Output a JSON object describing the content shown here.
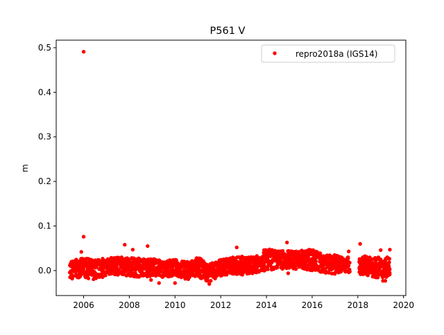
{
  "chart_data": {
    "type": "scatter",
    "title": "P561 V",
    "xlabel": "",
    "ylabel": "m",
    "xlim": [
      2004.8,
      2020.1
    ],
    "ylim": [
      -0.056,
      0.517
    ],
    "xticks": [
      2006,
      2008,
      2010,
      2012,
      2014,
      2016,
      2018,
      2020
    ],
    "xtick_labels": [
      "2006",
      "2008",
      "2010",
      "2012",
      "2014",
      "2016",
      "2018",
      "2020"
    ],
    "yticks": [
      0.0,
      0.1,
      0.2,
      0.3,
      0.4,
      0.5
    ],
    "ytick_labels": [
      "0.0",
      "0.1",
      "0.2",
      "0.3",
      "0.4",
      "0.5"
    ],
    "grid": false,
    "legend": {
      "placement": "top-right",
      "entries": [
        "repro2018a (IGS14)"
      ]
    },
    "series": [
      {
        "name": "repro2018a (IGS14)",
        "color": "#ff0000",
        "marker": "dot",
        "envelope": [
          {
            "x": 2005.4,
            "lo": -0.015,
            "hi": 0.022
          },
          {
            "x": 2006.0,
            "lo": -0.016,
            "hi": 0.028
          },
          {
            "x": 2006.5,
            "lo": -0.02,
            "hi": 0.025
          },
          {
            "x": 2007.0,
            "lo": -0.012,
            "hi": 0.028
          },
          {
            "x": 2007.5,
            "lo": -0.01,
            "hi": 0.03
          },
          {
            "x": 2008.0,
            "lo": -0.012,
            "hi": 0.03
          },
          {
            "x": 2008.5,
            "lo": -0.015,
            "hi": 0.028
          },
          {
            "x": 2009.0,
            "lo": -0.012,
            "hi": 0.027
          },
          {
            "x": 2009.5,
            "lo": -0.015,
            "hi": 0.022
          },
          {
            "x": 2010.0,
            "lo": -0.012,
            "hi": 0.025
          },
          {
            "x": 2010.5,
            "lo": -0.02,
            "hi": 0.02
          },
          {
            "x": 2011.0,
            "lo": -0.015,
            "hi": 0.03
          },
          {
            "x": 2011.5,
            "lo": -0.025,
            "hi": 0.015
          },
          {
            "x": 2012.0,
            "lo": -0.012,
            "hi": 0.025
          },
          {
            "x": 2012.5,
            "lo": -0.008,
            "hi": 0.03
          },
          {
            "x": 2013.0,
            "lo": -0.01,
            "hi": 0.032
          },
          {
            "x": 2013.5,
            "lo": -0.005,
            "hi": 0.03
          },
          {
            "x": 2014.0,
            "lo": 0.0,
            "hi": 0.05
          },
          {
            "x": 2014.5,
            "lo": 0.002,
            "hi": 0.045
          },
          {
            "x": 2015.0,
            "lo": 0.005,
            "hi": 0.045
          },
          {
            "x": 2015.5,
            "lo": 0.002,
            "hi": 0.045
          },
          {
            "x": 2016.0,
            "lo": 0.0,
            "hi": 0.05
          },
          {
            "x": 2016.5,
            "lo": -0.005,
            "hi": 0.035
          },
          {
            "x": 2017.0,
            "lo": -0.008,
            "hi": 0.035
          },
          {
            "x": 2017.5,
            "lo": -0.005,
            "hi": 0.03
          },
          {
            "x": 2018.1,
            "lo": -0.008,
            "hi": 0.035
          },
          {
            "x": 2018.5,
            "lo": -0.012,
            "hi": 0.03
          },
          {
            "x": 2019.0,
            "lo": -0.018,
            "hi": 0.03
          },
          {
            "x": 2019.4,
            "lo": -0.012,
            "hi": 0.03
          }
        ],
        "gaps": [
          [
            2017.65,
            2018.05
          ]
        ],
        "points": [
          [
            2006.0,
            0.491
          ],
          [
            2006.0,
            0.076
          ],
          [
            2005.9,
            0.042
          ],
          [
            2007.8,
            0.058
          ],
          [
            2008.15,
            0.047
          ],
          [
            2008.8,
            0.055
          ],
          [
            2009.3,
            -0.028
          ],
          [
            2010.0,
            -0.028
          ],
          [
            2008.95,
            -0.021
          ],
          [
            2011.5,
            -0.03
          ],
          [
            2012.7,
            0.052
          ],
          [
            2014.9,
            0.063
          ],
          [
            2014.95,
            -0.006
          ],
          [
            2017.6,
            0.043
          ],
          [
            2018.1,
            0.06
          ],
          [
            2019.0,
            0.046
          ],
          [
            2019.4,
            0.047
          ],
          [
            2019.2,
            -0.023
          ],
          [
            2019.1,
            -0.023
          ],
          [
            2005.5,
            -0.018
          ]
        ]
      }
    ]
  }
}
